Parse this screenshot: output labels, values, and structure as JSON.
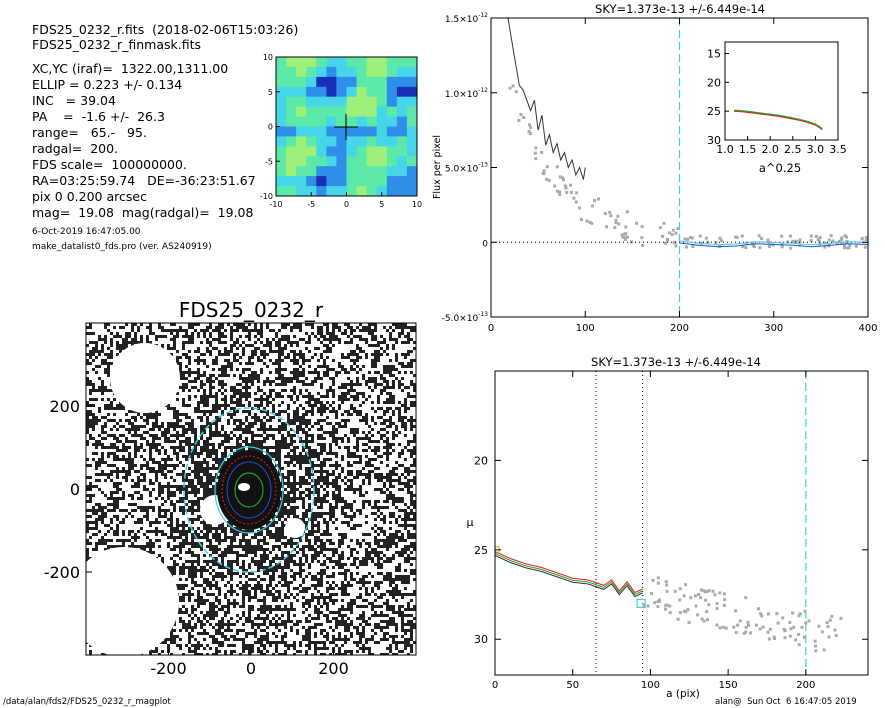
{
  "header": {
    "file_line": "FDS25_0232_r.fits  (2018-02-06T15:03:26)",
    "mask_line": "FDS25_0232_r_finmask.fits",
    "params": [
      "XC,YC (iraf)=  1322.00,1311.00",
      "ELLIP = 0.223 +/- 0.134",
      "INC   = 39.04",
      "PA    =  -1.6 +/-  26.3",
      "range=   65.-   95.",
      "radgal=  200.",
      "FDS scale=  100000000.",
      "RA=03:25:59.74   DE=-36:23:51.67",
      "pix 0 0.200 arcsec",
      "mag=  19.08  mag(radgal)=  19.08"
    ],
    "date_line": "6-Oct-2019 16:47:05.00",
    "program_line": "make_datalist0_fds.pro (ver. AS240919)"
  },
  "footer": {
    "path": "/data/alan/fds2/FDS25_0232_r_magplot",
    "user_stamp": "alan@  Sun Oct  6 16:47:05 2019"
  },
  "colors": {
    "cyan": "#3fd0e0",
    "green": "#2aa02a",
    "red": "#e02020",
    "blue": "#2050d0",
    "gray": "#aaaaaa",
    "dark": "#333333"
  },
  "chart_data": [
    {
      "id": "contour-map",
      "type": "heatmap",
      "title": "",
      "xlim": [
        -10,
        10
      ],
      "ylim": [
        -10,
        10
      ],
      "x_ticks": [
        "-10",
        "-5",
        "0",
        "5",
        "10"
      ],
      "y_ticks": [
        "10",
        "5",
        "0",
        "-5",
        "-10"
      ],
      "palette": [
        "#1a2fb8",
        "#2f8fe8",
        "#45d6e8",
        "#5ce8a8",
        "#9ef07a"
      ]
    },
    {
      "id": "image-panel",
      "type": "heatmap",
      "title": "FDS25_0232_r",
      "xlim": [
        -400,
        400
      ],
      "ylim": [
        -400,
        400
      ],
      "x_ticks": [
        "-200",
        "0",
        "200"
      ],
      "y_ticks": [
        "200",
        "0",
        "-200"
      ],
      "masked_regions": "white circles (masked sources)",
      "ellipses": [
        "green",
        "red",
        "blue",
        "cyan"
      ]
    },
    {
      "id": "flux-profile",
      "type": "scatter",
      "title": "SKY=1.373e-13 +/-6.449e-14",
      "xlabel": "",
      "ylabel": "Flux per pixel",
      "xlim": [
        0,
        400
      ],
      "ylim": [
        -5e-13,
        1.5e-12
      ],
      "x_ticks": [
        "0",
        "100",
        "200",
        "300",
        "400"
      ],
      "y_ticks": [
        {
          "mant": "-5.0×10",
          "exp": "-13",
          "value": -5e-13
        },
        {
          "mant": "0",
          "exp": "",
          "value": 0
        },
        {
          "mant": "5.0×10",
          "exp": "-13",
          "value": 5e-13
        },
        {
          "mant": "1.0×10",
          "exp": "-12",
          "value": 1e-12
        },
        {
          "mant": "1.5×10",
          "exp": "-12",
          "value": 1.5e-12
        }
      ],
      "radgal_line_x": 200,
      "series": [
        {
          "role": "profile",
          "x": [
            18,
            22,
            26,
            30,
            34,
            38,
            42,
            46,
            50,
            54,
            58,
            62,
            66,
            70,
            74,
            78,
            82,
            86,
            90,
            94,
            98,
            100
          ],
          "y": [
            1.5e-12,
            1.35e-12,
            1.2e-12,
            1.05e-12,
            1.02e-12,
            9.5e-13,
            8.8e-13,
            9.5e-13,
            7.5e-13,
            8.5e-13,
            6.5e-13,
            7.2e-13,
            6e-13,
            6.6e-13,
            5.5e-13,
            6e-13,
            5e-13,
            5.5e-13,
            4.5e-13,
            5e-13,
            4.2e-13,
            5e-13
          ]
        },
        {
          "role": "sky-fit",
          "x": [
            200,
            220,
            240,
            260,
            280,
            300,
            320,
            340,
            360,
            380,
            400
          ],
          "y": [
            -5e-15,
            -2e-14,
            -3e-14,
            -2.5e-14,
            -1e-14,
            -1.5e-14,
            -2e-14,
            -3e-14,
            -2e-14,
            -1e-14,
            -1.5e-14
          ]
        }
      ],
      "inset": {
        "xlabel": "a^0.25",
        "xlim": [
          1.0,
          3.5
        ],
        "ylim": [
          30,
          13
        ],
        "x_ticks": [
          "1.0",
          "1.5",
          "2.0",
          "2.5",
          "3.0",
          "3.5"
        ],
        "y_ticks": [
          "15",
          "20",
          "25",
          "30"
        ],
        "curve": {
          "x": [
            1.2,
            1.4,
            1.6,
            1.8,
            2.0,
            2.2,
            2.4,
            2.6,
            2.8,
            3.0,
            3.1,
            3.15
          ],
          "y": [
            25.0,
            25.1,
            25.3,
            25.5,
            25.7,
            25.9,
            26.2,
            26.5,
            26.9,
            27.4,
            27.9,
            28.2
          ]
        }
      }
    },
    {
      "id": "mu-profile",
      "type": "scatter",
      "title": "SKY=1.373e-13 +/-6.449e-14",
      "xlabel": "a (pix)",
      "ylabel": "μ",
      "xlim": [
        0,
        240
      ],
      "ylim": [
        32,
        15
      ],
      "x_ticks": [
        "0",
        "50",
        "100",
        "150",
        "200"
      ],
      "y_ticks": [
        "20",
        "25",
        "30"
      ],
      "range_lines_x": [
        65,
        95
      ],
      "radgal_line_x": 200,
      "profile": {
        "x": [
          0,
          10,
          20,
          30,
          40,
          50,
          60,
          70,
          75,
          80,
          85,
          90,
          95
        ],
        "y": [
          25.2,
          25.6,
          25.9,
          26.1,
          26.4,
          26.7,
          26.8,
          27.1,
          26.8,
          27.4,
          26.9,
          27.5,
          27.3
        ]
      },
      "points_mu_range": [
        27.0,
        31.0
      ],
      "marker": {
        "x": 94,
        "y": 28.0
      }
    }
  ]
}
